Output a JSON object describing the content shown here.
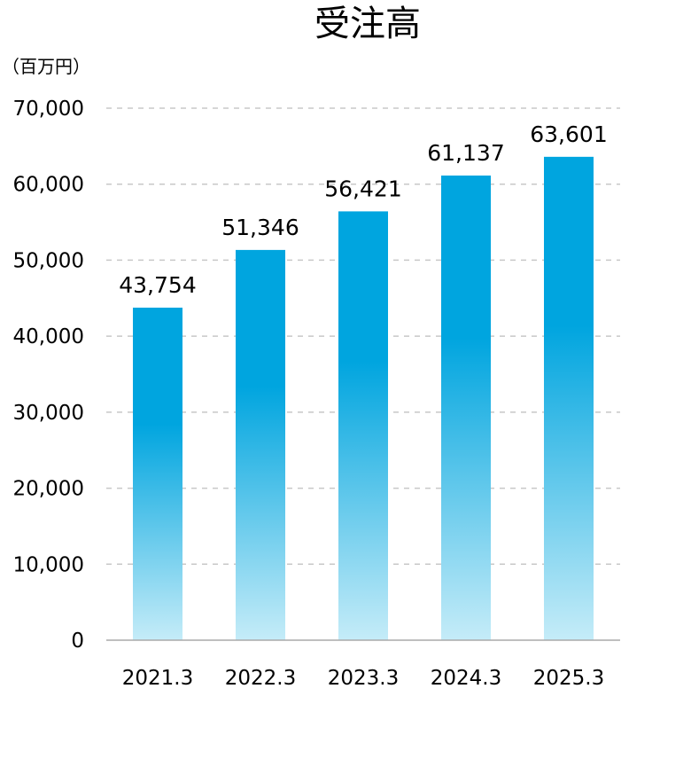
{
  "chart_data": {
    "type": "bar",
    "title": "受注高",
    "unit_label": "（百万円）",
    "categories": [
      "2021.3",
      "2022.3",
      "2023.3",
      "2024.3",
      "2025.3"
    ],
    "values": [
      43754,
      51346,
      56421,
      61137,
      63601
    ],
    "data_labels": [
      "43,754",
      "51,346",
      "56,421",
      "61,137",
      "63,601"
    ],
    "ylim": [
      0,
      70000
    ],
    "yticks": [
      0,
      10000,
      20000,
      30000,
      40000,
      50000,
      60000,
      70000
    ],
    "ytick_labels": [
      "0",
      "10,000",
      "20,000",
      "30,000",
      "40,000",
      "50,000",
      "60,000",
      "70,000"
    ],
    "grid": true,
    "grid_style": "dashed",
    "colors": {
      "bar_top": "#00a5df",
      "bar_mid": "#00a5df",
      "bar_bottom": "#c5ecf8",
      "grid": "#c8c8c8",
      "axis": "#aaaaaa"
    }
  }
}
